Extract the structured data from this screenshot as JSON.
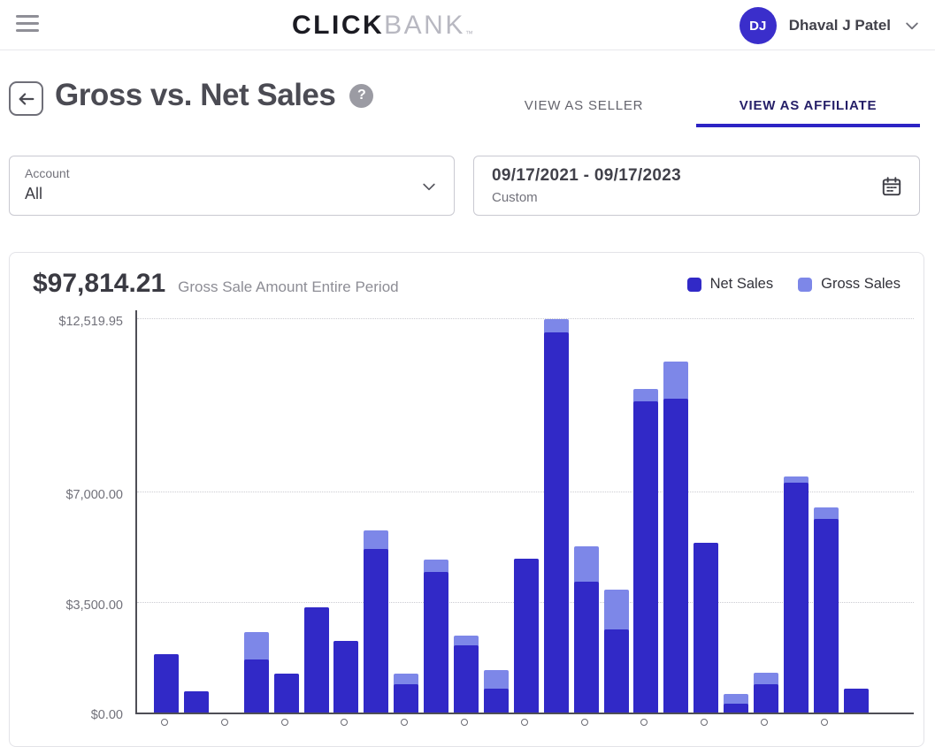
{
  "topbar": {
    "logo_click": "CLICK",
    "logo_bank": "BANK",
    "logo_tm": "™",
    "user": {
      "initials": "DJ",
      "name": "Dhaval J Patel"
    }
  },
  "header": {
    "title": "Gross vs. Net Sales",
    "help": "?",
    "tabs": [
      {
        "label": "VIEW AS SELLER",
        "active": false
      },
      {
        "label": "VIEW AS AFFILIATE",
        "active": true
      }
    ]
  },
  "filters": {
    "account": {
      "label": "Account",
      "value": "All"
    },
    "date_range": {
      "value": "09/17/2021 - 09/17/2023",
      "mode": "Custom"
    }
  },
  "summary": {
    "amount": "$97,814.21",
    "caption": "Gross Sale Amount Entire Period"
  },
  "legend": [
    {
      "label": "Net Sales",
      "color": "#3129c7"
    },
    {
      "label": "Gross Sales",
      "color": "#7d87e8"
    }
  ],
  "colors": {
    "brand_indigo": "#2c23c4",
    "net_sales": "#3129c7",
    "gross_sales": "#7d87e8",
    "avatar_bg": "#3a2ecb"
  },
  "chart_data": {
    "type": "bar",
    "title": "Gross vs. Net Sales",
    "subtitle": "Gross Sale Amount Entire Period",
    "total_gross": "$97,814.21",
    "ylim": [
      0,
      12519.95
    ],
    "grid": "dotted-horizontal",
    "legend_position": "top-right",
    "y_ticks": [
      {
        "label": "$12,519.95",
        "value": 12519.95
      },
      {
        "label": "$7,000.00",
        "value": 7000
      },
      {
        "label": "$3,500.00",
        "value": 3500
      },
      {
        "label": "$0.00",
        "value": 0
      }
    ],
    "x_labels_visible": false,
    "series": [
      {
        "name": "Gross Sales",
        "color": "#7d87e8",
        "values": [
          1850,
          670,
          0,
          2550,
          1230,
          3350,
          2270,
          5800,
          1230,
          4870,
          2450,
          1350,
          4890,
          12519.95,
          5280,
          3900,
          10300,
          11150,
          5390,
          590,
          1260,
          7500,
          6520,
          760
        ]
      },
      {
        "name": "Net Sales",
        "color": "#3129c7",
        "values": [
          1850,
          670,
          0,
          1700,
          1230,
          3350,
          2270,
          5200,
          900,
          4470,
          2150,
          760,
          4890,
          12080,
          4160,
          2640,
          9890,
          9970,
          5390,
          280,
          900,
          7300,
          6150,
          760
        ]
      }
    ]
  }
}
